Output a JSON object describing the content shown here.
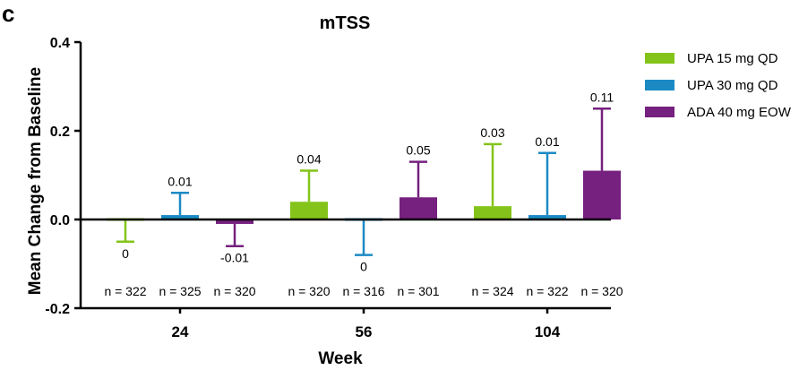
{
  "panel_label": "c",
  "chart_data": {
    "type": "bar",
    "title": "mTSS",
    "xlabel": "Week",
    "ylabel": "Mean  Change from Baseline",
    "ylim": [
      -0.2,
      0.4
    ],
    "yticks": [
      "-0.2",
      "0.0",
      "0.2",
      "0.4"
    ],
    "categories": [
      "24",
      "56",
      "104"
    ],
    "grid": false,
    "legend_position": "right",
    "series": [
      {
        "name": "UPA 15 mg QD",
        "color": "#84c41a",
        "values": [
          0,
          0.04,
          0.03
        ],
        "error_ends": [
          -0.05,
          0.11,
          0.17
        ],
        "labels": [
          "0",
          "0.04",
          "0.03"
        ],
        "n": [
          "n = 322",
          "n = 320",
          "n = 324"
        ]
      },
      {
        "name": "UPA 30 mg QD",
        "color": "#1b8ac4",
        "values": [
          0.01,
          0,
          0.01
        ],
        "error_ends": [
          0.06,
          -0.08,
          0.15
        ],
        "labels": [
          "0.01",
          "0",
          "0.01"
        ],
        "n": [
          "n = 325",
          "n = 316",
          "n = 322"
        ]
      },
      {
        "name": "ADA 40 mg EOW",
        "color": "#76207f",
        "values": [
          -0.01,
          0.05,
          0.11
        ],
        "error_ends": [
          -0.06,
          0.13,
          0.25
        ],
        "labels": [
          "-0.01",
          "0.05",
          "0.11"
        ],
        "n": [
          "n = 320",
          "n = 301",
          "n = 320"
        ]
      }
    ]
  }
}
